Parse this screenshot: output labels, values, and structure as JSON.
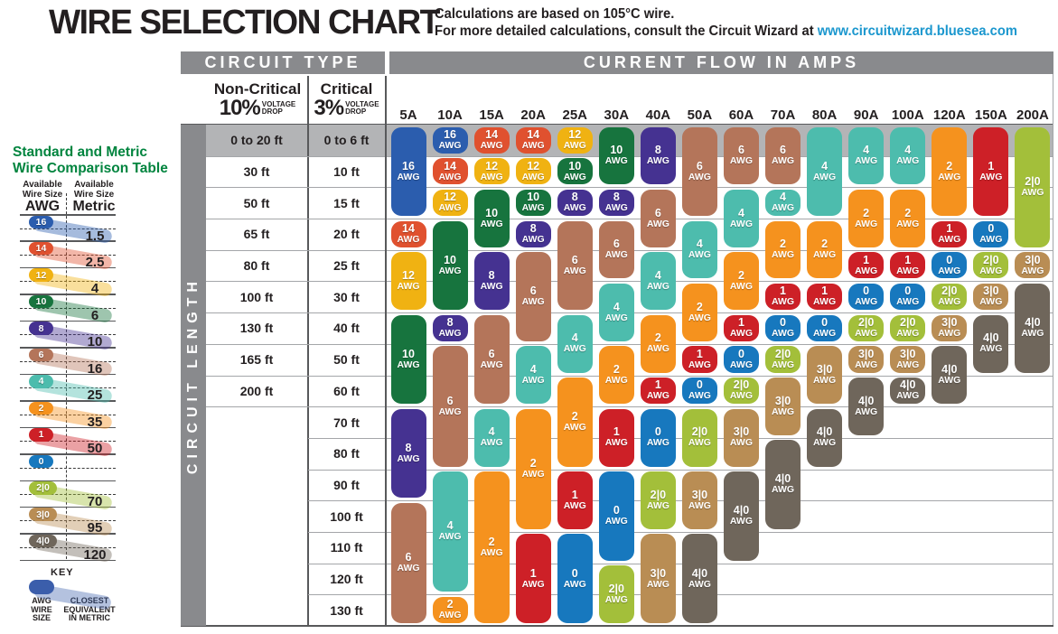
{
  "header": {
    "title": "WIRE SELECTION CHART",
    "subtitle_line1": "Calculations are based on 105°C wire.",
    "subtitle_line2_prefix": "For more detailed calculations, consult the Circuit Wizard at ",
    "subtitle_link": "www.circuitwizard.bluesea.com",
    "link_color": "#1b97ce"
  },
  "circuit_type": {
    "header": "CIRCUIT TYPE",
    "non_critical_title": "Non-Critical",
    "non_critical_pct": "10%",
    "critical_title": "Critical",
    "critical_pct": "3%",
    "voltage_drop": "VOLTAGE\nDROP"
  },
  "current_flow_header": "CURRENT FLOW IN AMPS",
  "circuit_length_label": "CIRCUIT LENGTH",
  "comparison_table": {
    "title_line1": "Standard and Metric",
    "title_line2": "Wire Comparison Table",
    "col1_header": "Available\nWire Size",
    "col1_unit": "AWG",
    "col2_header": "Available\nWire Size",
    "col2_unit": "Metric",
    "entries": [
      {
        "awg": "16",
        "metric": "1.5"
      },
      {
        "awg": "14",
        "metric": "2.5"
      },
      {
        "awg": "12",
        "metric": "4"
      },
      {
        "awg": "10",
        "metric": "6"
      },
      {
        "awg": "8",
        "metric": "10"
      },
      {
        "awg": "6",
        "metric": "16"
      },
      {
        "awg": "4",
        "metric": "25"
      },
      {
        "awg": "2",
        "metric": "35"
      },
      {
        "awg": "1",
        "metric": "50"
      },
      {
        "awg": "0",
        "metric": null
      },
      {
        "awg": "2|0",
        "metric": "70"
      },
      {
        "awg": "3|0",
        "metric": "95"
      },
      {
        "awg": "4|0",
        "metric": "120"
      }
    ],
    "key": {
      "title": "KEY",
      "pill_label": "AWG\nWIRE\nSIZE",
      "band_label": "CLOSEST\nEQUIVALENT\nIN METRIC",
      "pill_color": "#3b5eab"
    }
  },
  "awg_colors": {
    "16": "#2b5dae",
    "14": "#e0512f",
    "12": "#f0b212",
    "10": "#17743e",
    "8": "#453291",
    "6": "#b4755a",
    "4": "#4dbcad",
    "2": "#f5921e",
    "1": "#cd2027",
    "0": "#1778be",
    "2|0": "#a3bf3a",
    "3|0": "#b98d54",
    "4|0": "#6f665b"
  },
  "chart_data": {
    "type": "table",
    "title": "WIRE SELECTION CHART",
    "pill_suffix": "AWG",
    "amp_columns": [
      "5A",
      "10A",
      "15A",
      "20A",
      "25A",
      "30A",
      "40A",
      "50A",
      "60A",
      "70A",
      "80A",
      "90A",
      "100A",
      "120A",
      "150A",
      "200A"
    ],
    "rows": [
      {
        "non_critical": "0 to 20 ft",
        "critical": "0 to 6 ft"
      },
      {
        "non_critical": "30 ft",
        "critical": "10 ft"
      },
      {
        "non_critical": "50 ft",
        "critical": "15 ft"
      },
      {
        "non_critical": "65 ft",
        "critical": "20 ft"
      },
      {
        "non_critical": "80 ft",
        "critical": "25 ft"
      },
      {
        "non_critical": "100 ft",
        "critical": "30 ft"
      },
      {
        "non_critical": "130 ft",
        "critical": "40 ft"
      },
      {
        "non_critical": "165 ft",
        "critical": "50 ft"
      },
      {
        "non_critical": "200 ft",
        "critical": "60 ft"
      },
      {
        "non_critical": null,
        "critical": "70 ft"
      },
      {
        "non_critical": null,
        "critical": "80 ft"
      },
      {
        "non_critical": null,
        "critical": "90 ft"
      },
      {
        "non_critical": null,
        "critical": "100 ft"
      },
      {
        "non_critical": null,
        "critical": "110 ft"
      },
      {
        "non_critical": null,
        "critical": "120 ft"
      },
      {
        "non_critical": null,
        "critical": "130 ft"
      }
    ],
    "columns": [
      {
        "amps": "5A",
        "pills": [
          {
            "awg": "16",
            "row_start": 1,
            "row_end": 3
          },
          {
            "awg": "14",
            "row_start": 4,
            "row_end": 4
          },
          {
            "awg": "12",
            "row_start": 5,
            "row_end": 6
          },
          {
            "awg": "10",
            "row_start": 7,
            "row_end": 9
          },
          {
            "awg": "8",
            "row_start": 10,
            "row_end": 12
          },
          {
            "awg": "6",
            "row_start": 13,
            "row_end": 16
          }
        ]
      },
      {
        "amps": "10A",
        "pills": [
          {
            "awg": "16",
            "row_start": 1,
            "row_end": 1
          },
          {
            "awg": "14",
            "row_start": 2,
            "row_end": 2
          },
          {
            "awg": "12",
            "row_start": 3,
            "row_end": 3
          },
          {
            "awg": "10",
            "row_start": 4,
            "row_end": 6
          },
          {
            "awg": "8",
            "row_start": 7,
            "row_end": 7
          },
          {
            "awg": "6",
            "row_start": 8,
            "row_end": 11
          },
          {
            "awg": "4",
            "row_start": 12,
            "row_end": 15
          },
          {
            "awg": "2",
            "row_start": 16,
            "row_end": 16
          }
        ]
      },
      {
        "amps": "15A",
        "pills": [
          {
            "awg": "14",
            "row_start": 1,
            "row_end": 1
          },
          {
            "awg": "12",
            "row_start": 2,
            "row_end": 2
          },
          {
            "awg": "10",
            "row_start": 3,
            "row_end": 4
          },
          {
            "awg": "8",
            "row_start": 5,
            "row_end": 6
          },
          {
            "awg": "6",
            "row_start": 7,
            "row_end": 9
          },
          {
            "awg": "4",
            "row_start": 10,
            "row_end": 11
          },
          {
            "awg": "2",
            "row_start": 12,
            "row_end": 16
          }
        ]
      },
      {
        "amps": "20A",
        "pills": [
          {
            "awg": "14",
            "row_start": 1,
            "row_end": 1
          },
          {
            "awg": "12",
            "row_start": 2,
            "row_end": 2
          },
          {
            "awg": "10",
            "row_start": 3,
            "row_end": 3
          },
          {
            "awg": "8",
            "row_start": 4,
            "row_end": 4
          },
          {
            "awg": "6",
            "row_start": 5,
            "row_end": 7
          },
          {
            "awg": "4",
            "row_start": 8,
            "row_end": 9
          },
          {
            "awg": "2",
            "row_start": 10,
            "row_end": 13
          },
          {
            "awg": "1",
            "row_start": 14,
            "row_end": 16
          }
        ]
      },
      {
        "amps": "25A",
        "pills": [
          {
            "awg": "12",
            "row_start": 1,
            "row_end": 1
          },
          {
            "awg": "10",
            "row_start": 2,
            "row_end": 2
          },
          {
            "awg": "8",
            "row_start": 3,
            "row_end": 3
          },
          {
            "awg": "6",
            "row_start": 4,
            "row_end": 6
          },
          {
            "awg": "4",
            "row_start": 7,
            "row_end": 8
          },
          {
            "awg": "2",
            "row_start": 9,
            "row_end": 11
          },
          {
            "awg": "1",
            "row_start": 12,
            "row_end": 13
          },
          {
            "awg": "0",
            "row_start": 14,
            "row_end": 16
          }
        ]
      },
      {
        "amps": "30A",
        "pills": [
          {
            "awg": "10",
            "row_start": 1,
            "row_end": 2
          },
          {
            "awg": "8",
            "row_start": 3,
            "row_end": 3
          },
          {
            "awg": "6",
            "row_start": 4,
            "row_end": 5
          },
          {
            "awg": "4",
            "row_start": 6,
            "row_end": 7
          },
          {
            "awg": "2",
            "row_start": 8,
            "row_end": 9
          },
          {
            "awg": "1",
            "row_start": 10,
            "row_end": 11
          },
          {
            "awg": "0",
            "row_start": 12,
            "row_end": 14
          },
          {
            "awg": "2|0",
            "row_start": 15,
            "row_end": 16
          }
        ]
      },
      {
        "amps": "40A",
        "pills": [
          {
            "awg": "8",
            "row_start": 1,
            "row_end": 2
          },
          {
            "awg": "6",
            "row_start": 3,
            "row_end": 4
          },
          {
            "awg": "4",
            "row_start": 5,
            "row_end": 6
          },
          {
            "awg": "2",
            "row_start": 7,
            "row_end": 8
          },
          {
            "awg": "1",
            "row_start": 9,
            "row_end": 9
          },
          {
            "awg": "0",
            "row_start": 10,
            "row_end": 11
          },
          {
            "awg": "2|0",
            "row_start": 12,
            "row_end": 13
          },
          {
            "awg": "3|0",
            "row_start": 14,
            "row_end": 16
          }
        ]
      },
      {
        "amps": "50A",
        "pills": [
          {
            "awg": "6",
            "row_start": 1,
            "row_end": 3
          },
          {
            "awg": "4",
            "row_start": 4,
            "row_end": 5
          },
          {
            "awg": "2",
            "row_start": 6,
            "row_end": 7
          },
          {
            "awg": "1",
            "row_start": 8,
            "row_end": 8
          },
          {
            "awg": "0",
            "row_start": 9,
            "row_end": 9
          },
          {
            "awg": "2|0",
            "row_start": 10,
            "row_end": 11
          },
          {
            "awg": "3|0",
            "row_start": 12,
            "row_end": 13
          },
          {
            "awg": "4|0",
            "row_start": 14,
            "row_end": 16
          }
        ]
      },
      {
        "amps": "60A",
        "pills": [
          {
            "awg": "6",
            "row_start": 1,
            "row_end": 2
          },
          {
            "awg": "4",
            "row_start": 3,
            "row_end": 4
          },
          {
            "awg": "2",
            "row_start": 5,
            "row_end": 6
          },
          {
            "awg": "1",
            "row_start": 7,
            "row_end": 7
          },
          {
            "awg": "0",
            "row_start": 8,
            "row_end": 8
          },
          {
            "awg": "2|0",
            "row_start": 9,
            "row_end": 9
          },
          {
            "awg": "3|0",
            "row_start": 10,
            "row_end": 11
          },
          {
            "awg": "4|0",
            "row_start": 12,
            "row_end": 14
          }
        ]
      },
      {
        "amps": "70A",
        "pills": [
          {
            "awg": "6",
            "row_start": 1,
            "row_end": 2
          },
          {
            "awg": "4",
            "row_start": 3,
            "row_end": 3
          },
          {
            "awg": "2",
            "row_start": 4,
            "row_end": 5
          },
          {
            "awg": "1",
            "row_start": 6,
            "row_end": 6
          },
          {
            "awg": "0",
            "row_start": 7,
            "row_end": 7
          },
          {
            "awg": "2|0",
            "row_start": 8,
            "row_end": 8
          },
          {
            "awg": "3|0",
            "row_start": 9,
            "row_end": 10
          },
          {
            "awg": "4|0",
            "row_start": 11,
            "row_end": 13
          }
        ]
      },
      {
        "amps": "80A",
        "pills": [
          {
            "awg": "4",
            "row_start": 1,
            "row_end": 3
          },
          {
            "awg": "2",
            "row_start": 4,
            "row_end": 5
          },
          {
            "awg": "1",
            "row_start": 6,
            "row_end": 6
          },
          {
            "awg": "0",
            "row_start": 7,
            "row_end": 7
          },
          {
            "awg": "3|0",
            "row_start": 8,
            "row_end": 9
          },
          {
            "awg": "4|0",
            "row_start": 10,
            "row_end": 11
          }
        ]
      },
      {
        "amps": "90A",
        "pills": [
          {
            "awg": "4",
            "row_start": 1,
            "row_end": 2
          },
          {
            "awg": "2",
            "row_start": 3,
            "row_end": 4
          },
          {
            "awg": "1",
            "row_start": 5,
            "row_end": 5
          },
          {
            "awg": "0",
            "row_start": 6,
            "row_end": 6
          },
          {
            "awg": "2|0",
            "row_start": 7,
            "row_end": 7
          },
          {
            "awg": "3|0",
            "row_start": 8,
            "row_end": 8
          },
          {
            "awg": "4|0",
            "row_start": 9,
            "row_end": 10
          }
        ]
      },
      {
        "amps": "100A",
        "pills": [
          {
            "awg": "4",
            "row_start": 1,
            "row_end": 2
          },
          {
            "awg": "2",
            "row_start": 3,
            "row_end": 4
          },
          {
            "awg": "1",
            "row_start": 5,
            "row_end": 5
          },
          {
            "awg": "0",
            "row_start": 6,
            "row_end": 6
          },
          {
            "awg": "2|0",
            "row_start": 7,
            "row_end": 7
          },
          {
            "awg": "3|0",
            "row_start": 8,
            "row_end": 8
          },
          {
            "awg": "4|0",
            "row_start": 9,
            "row_end": 9
          }
        ]
      },
      {
        "amps": "120A",
        "pills": [
          {
            "awg": "2",
            "row_start": 1,
            "row_end": 3
          },
          {
            "awg": "1",
            "row_start": 4,
            "row_end": 4
          },
          {
            "awg": "0",
            "row_start": 5,
            "row_end": 5
          },
          {
            "awg": "2|0",
            "row_start": 6,
            "row_end": 6
          },
          {
            "awg": "3|0",
            "row_start": 7,
            "row_end": 7
          },
          {
            "awg": "4|0",
            "row_start": 8,
            "row_end": 9
          }
        ]
      },
      {
        "amps": "150A",
        "pills": [
          {
            "awg": "1",
            "row_start": 1,
            "row_end": 3
          },
          {
            "awg": "0",
            "row_start": 4,
            "row_end": 4
          },
          {
            "awg": "2|0",
            "row_start": 5,
            "row_end": 5
          },
          {
            "awg": "3|0",
            "row_start": 6,
            "row_end": 6
          },
          {
            "awg": "4|0",
            "row_start": 7,
            "row_end": 8
          }
        ]
      },
      {
        "amps": "200A",
        "pills": [
          {
            "awg": "2|0",
            "row_start": 1,
            "row_end": 4
          },
          {
            "awg": "3|0",
            "row_start": 5,
            "row_end": 5
          },
          {
            "awg": "4|0",
            "row_start": 6,
            "row_end": 8
          }
        ]
      }
    ]
  }
}
